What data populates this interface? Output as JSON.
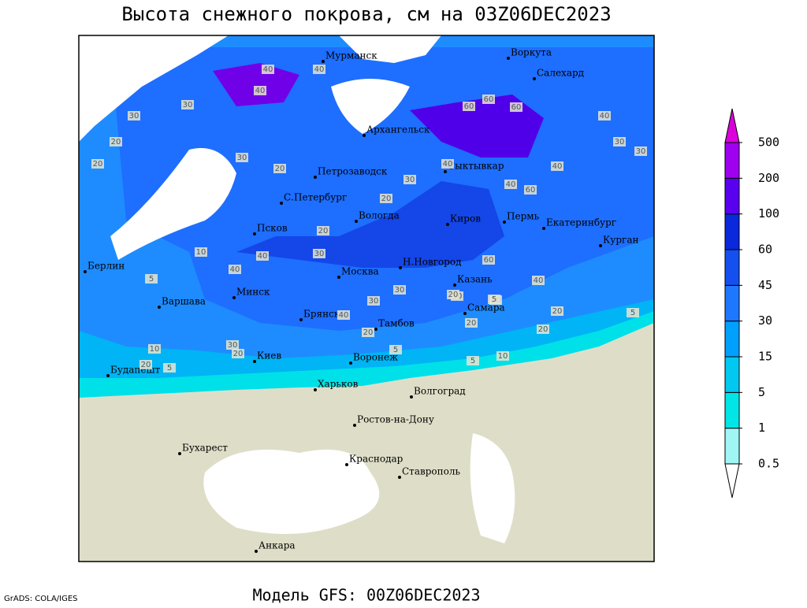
{
  "title": "Высота снежного покрова, см на 03Z06DEC2023",
  "footer": "Модель GFS: 00Z06DEC2023",
  "credit": "GrADS: COLA/IGES",
  "legend": {
    "levels": [
      0.5,
      1,
      5,
      15,
      30,
      45,
      60,
      100,
      200,
      500
    ],
    "colors": [
      "#ffffff",
      "#a0f5f5",
      "#00e6e6",
      "#00c8f0",
      "#00a0ff",
      "#1e78ff",
      "#1450f0",
      "#0a28dc",
      "#5a00f0",
      "#a000f0",
      "#dc00dc"
    ]
  },
  "cities": [
    "Мурманск",
    "Воркута",
    "Салехард",
    "Архангельск",
    "Петрозаводск",
    "Сыктывкар",
    "С.Петербург",
    "Вологда",
    "Киров",
    "Пермь",
    "Екатеринбург",
    "Курган",
    "Псков",
    "Берлин",
    "Н.Новгород",
    "Казань",
    "Москва",
    "Минск",
    "Варшава",
    "Самара",
    "Брянск",
    "Тамбов",
    "Киев",
    "Воронеж",
    "Будапешт",
    "Харьков",
    "Волгоград",
    "Ростов-на-Дону",
    "Бухарест",
    "Краснодар",
    "Ставрополь",
    "Анкара"
  ],
  "contour_labels": [
    40,
    40,
    30,
    40,
    60,
    60,
    60,
    40,
    30,
    20,
    30,
    60,
    40,
    20,
    30,
    20,
    40,
    20,
    40,
    60,
    40,
    30,
    30,
    40,
    30,
    10,
    30,
    20,
    40,
    30,
    5,
    20,
    40,
    10,
    20,
    30,
    5,
    20,
    5,
    5,
    10,
    20,
    5,
    20,
    20,
    30,
    20,
    5,
    20
  ]
}
